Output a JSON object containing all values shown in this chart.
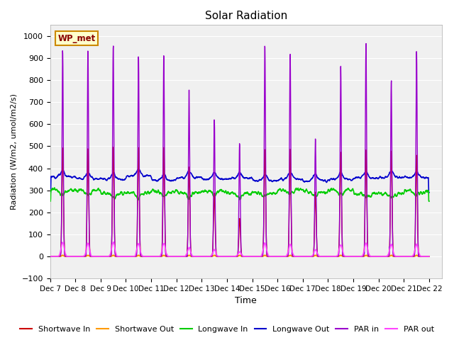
{
  "title": "Solar Radiation",
  "xlabel": "Time",
  "ylabel": "Radiation (W/m2, umol/m2/s)",
  "ylim": [
    -100,
    1050
  ],
  "background_color": "#f0f0f0",
  "plot_bg_color": "#f0f0f0",
  "grid_color": "white",
  "legend_label": "WP_met",
  "x_tick_labels": [
    "Dec 7",
    "Dec 8",
    "Dec 9",
    "Dec 10",
    "Dec 11",
    "Dec 12",
    "Dec 13",
    "Dec 14",
    "Dec 15",
    "Dec 16",
    "Dec 17",
    "Dec 18",
    "Dec 19",
    "Dec 20",
    "Dec 21",
    "Dec 22"
  ],
  "series_colors": {
    "shortwave_in": "#cc0000",
    "shortwave_out": "#ff9900",
    "longwave_in": "#00cc00",
    "longwave_out": "#0000cc",
    "par_in": "#9900cc",
    "par_out": "#ff44ff"
  },
  "legend_items": [
    {
      "label": "Shortwave In",
      "color": "#cc0000"
    },
    {
      "label": "Shortwave Out",
      "color": "#ff9900"
    },
    {
      "label": "Longwave In",
      "color": "#00cc00"
    },
    {
      "label": "Longwave Out",
      "color": "#0000cc"
    },
    {
      "label": "PAR in",
      "color": "#9900cc"
    },
    {
      "label": "PAR out",
      "color": "#ff44ff"
    }
  ],
  "par_in_peaks": [
    930,
    935,
    960,
    910,
    920,
    760,
    630,
    510,
    960,
    930,
    540,
    870,
    960,
    800,
    940
  ],
  "sw_in_peaks": [
    500,
    500,
    505,
    505,
    500,
    410,
    300,
    180,
    495,
    500,
    300,
    480,
    495,
    490,
    470
  ],
  "par_out_peaks": [
    65,
    60,
    65,
    60,
    60,
    40,
    30,
    20,
    60,
    55,
    30,
    55,
    60,
    55,
    55
  ]
}
